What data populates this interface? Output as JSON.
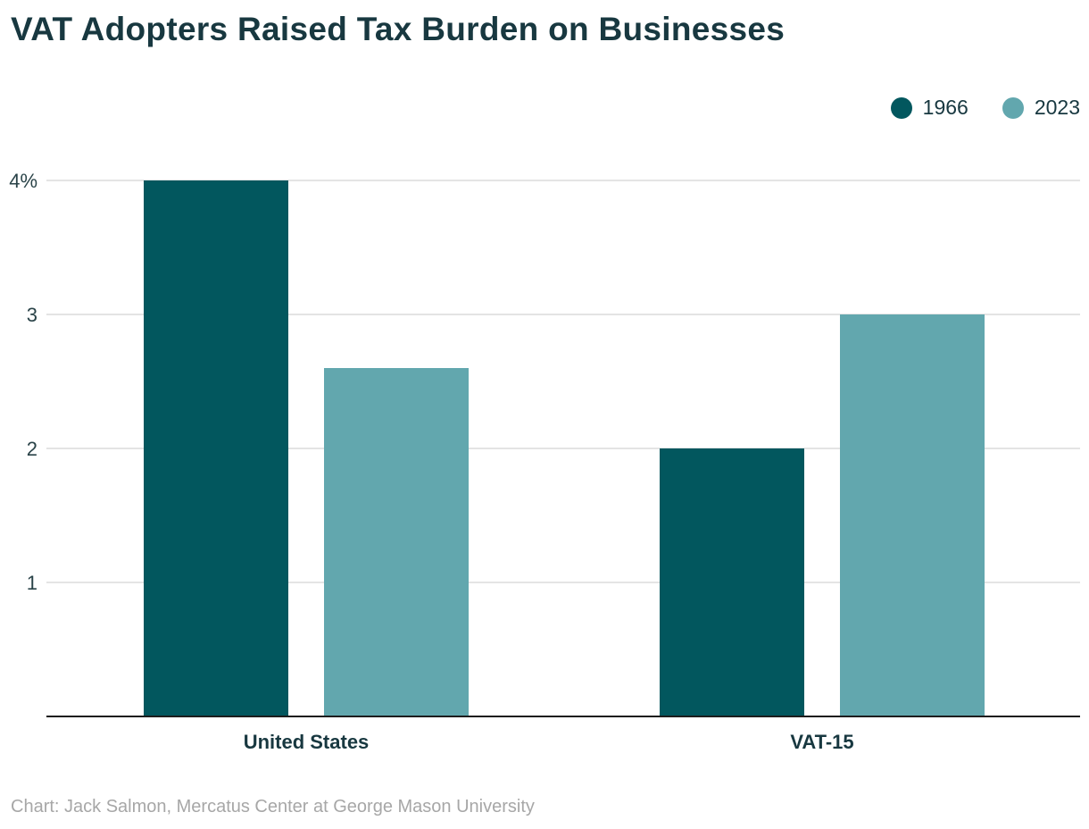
{
  "chart_data": {
    "type": "bar",
    "title": "VAT Adopters Raised Tax Burden on Businesses",
    "categories": [
      "United States",
      "VAT-15"
    ],
    "series": [
      {
        "name": "1966",
        "values": [
          4.0,
          2.0
        ],
        "color": "#02575e"
      },
      {
        "name": "2023",
        "values": [
          2.6,
          3.0
        ],
        "color": "#62a7ae"
      }
    ],
    "y_ticks": [
      {
        "value": 1,
        "label": "1"
      },
      {
        "value": 2,
        "label": "2"
      },
      {
        "value": 3,
        "label": "3"
      },
      {
        "value": 4,
        "label": "4%"
      }
    ],
    "ylim": [
      0,
      4
    ],
    "xlabel": "",
    "ylabel": "",
    "legend_position": "top-right",
    "grid": true,
    "source": "Chart: Jack Salmon, Mercatus Center at George Mason University"
  }
}
